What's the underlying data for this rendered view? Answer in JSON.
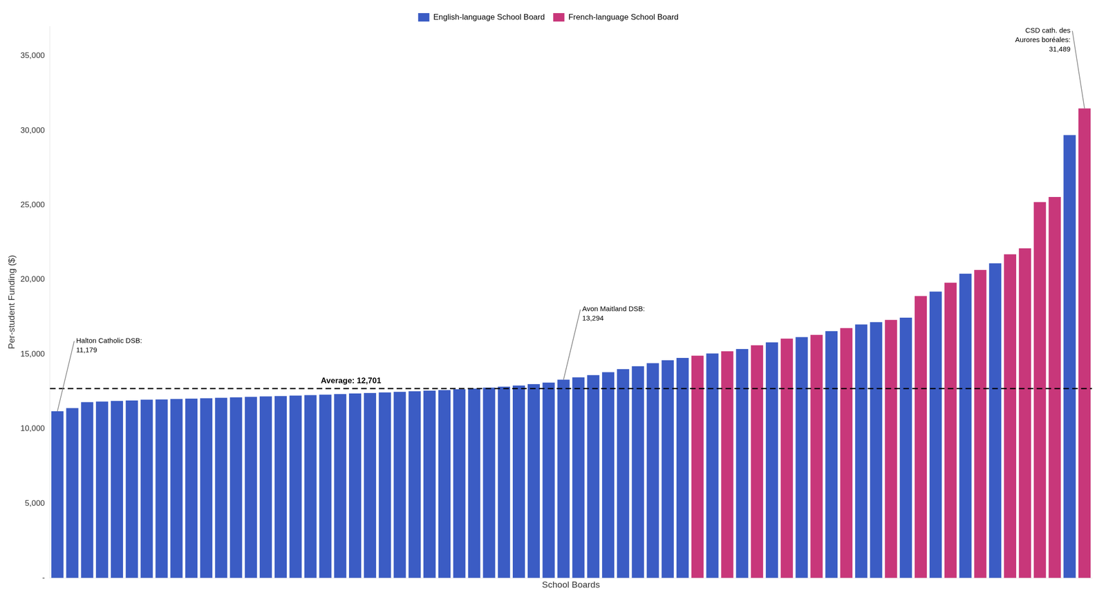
{
  "chart_data": {
    "type": "bar",
    "xlabel": "School Boards",
    "ylabel": "Per-student Funding ($)",
    "categories": [
      null,
      null,
      null,
      null,
      null,
      null,
      null,
      null,
      null,
      null,
      null,
      null,
      null,
      null,
      null,
      null,
      null,
      null,
      null,
      null,
      null,
      null,
      null,
      null,
      null,
      null,
      null,
      null,
      null,
      null,
      null,
      null,
      null,
      null,
      null,
      null,
      null,
      null,
      null,
      null,
      null,
      null,
      null,
      null,
      null,
      null,
      null,
      null,
      null,
      null,
      null,
      null,
      null,
      null,
      null,
      null,
      null,
      null,
      null,
      null,
      null,
      null,
      null,
      null,
      null,
      null,
      null,
      null,
      null,
      null
    ],
    "values": [
      11179,
      11390,
      11790,
      11830,
      11870,
      11900,
      11950,
      11970,
      12000,
      12020,
      12050,
      12080,
      12110,
      12140,
      12170,
      12200,
      12230,
      12260,
      12290,
      12330,
      12370,
      12400,
      12440,
      12480,
      12520,
      12560,
      12600,
      12650,
      12700,
      12760,
      12820,
      12900,
      13000,
      13100,
      13294,
      13450,
      13600,
      13800,
      14000,
      14200,
      14400,
      14600,
      14750,
      14900,
      15050,
      15200,
      15350,
      15600,
      15800,
      16050,
      16150,
      16300,
      16550,
      16750,
      17000,
      17150,
      17300,
      17450,
      18900,
      19200,
      19800,
      20400,
      20650,
      21100,
      21700,
      22100,
      25200,
      25550,
      29700,
      31489
    ],
    "colors": [
      "#3B5CC4",
      "#3B5CC4",
      "#3B5CC4",
      "#3B5CC4",
      "#3B5CC4",
      "#3B5CC4",
      "#3B5CC4",
      "#3B5CC4",
      "#3B5CC4",
      "#3B5CC4",
      "#3B5CC4",
      "#3B5CC4",
      "#3B5CC4",
      "#3B5CC4",
      "#3B5CC4",
      "#3B5CC4",
      "#3B5CC4",
      "#3B5CC4",
      "#3B5CC4",
      "#3B5CC4",
      "#3B5CC4",
      "#3B5CC4",
      "#3B5CC4",
      "#3B5CC4",
      "#3B5CC4",
      "#3B5CC4",
      "#3B5CC4",
      "#3B5CC4",
      "#3B5CC4",
      "#3B5CC4",
      "#3B5CC4",
      "#3B5CC4",
      "#3B5CC4",
      "#3B5CC4",
      "#3B5CC4",
      "#3B5CC4",
      "#3B5CC4",
      "#3B5CC4",
      "#3B5CC4",
      "#3B5CC4",
      "#3B5CC4",
      "#3B5CC4",
      "#3B5CC4",
      "#C8377A",
      "#3B5CC4",
      "#C8377A",
      "#3B5CC4",
      "#C8377A",
      "#3B5CC4",
      "#C8377A",
      "#3B5CC4",
      "#C8377A",
      "#3B5CC4",
      "#C8377A",
      "#3B5CC4",
      "#3B5CC4",
      "#C8377A",
      "#3B5CC4",
      "#C8377A",
      "#3B5CC4",
      "#C8377A",
      "#3B5CC4",
      "#C8377A",
      "#3B5CC4",
      "#C8377A",
      "#C8377A",
      "#C8377A",
      "#C8377A",
      "#3B5CC4",
      "#C8377A"
    ],
    "legend_entries": [
      {
        "name": "English-language School Board",
        "color": "#3B5CC4"
      },
      {
        "name": "French-language School Board",
        "color": "#C8377A"
      }
    ],
    "legend": "top",
    "reference_lines": [
      {
        "value": 12701,
        "label": "Average: 12,701",
        "line_style": "dashed"
      }
    ],
    "annotations": [
      {
        "text": "Halton Catholic DSB:\n11,179",
        "index": 0,
        "value": 11179
      },
      {
        "text": "Avon Maitland DSB:\n13,294",
        "index": 34,
        "value": 13294
      },
      {
        "text": "CSD cath. des\nAurores boréales:\n31,489",
        "index": 69,
        "value": 31489
      }
    ],
    "ylim": [
      0,
      37000
    ],
    "yticks": [
      {
        "value": 0,
        "label": "-"
      },
      {
        "value": 5000,
        "label": "5,000"
      },
      {
        "value": 10000,
        "label": "10,000"
      },
      {
        "value": 15000,
        "label": "15,000"
      },
      {
        "value": 20000,
        "label": "20,000"
      },
      {
        "value": 25000,
        "label": "25,000"
      },
      {
        "value": 30000,
        "label": "30,000"
      },
      {
        "value": 35000,
        "label": "35,000"
      }
    ],
    "grid": false,
    "tick_labels": "y"
  }
}
